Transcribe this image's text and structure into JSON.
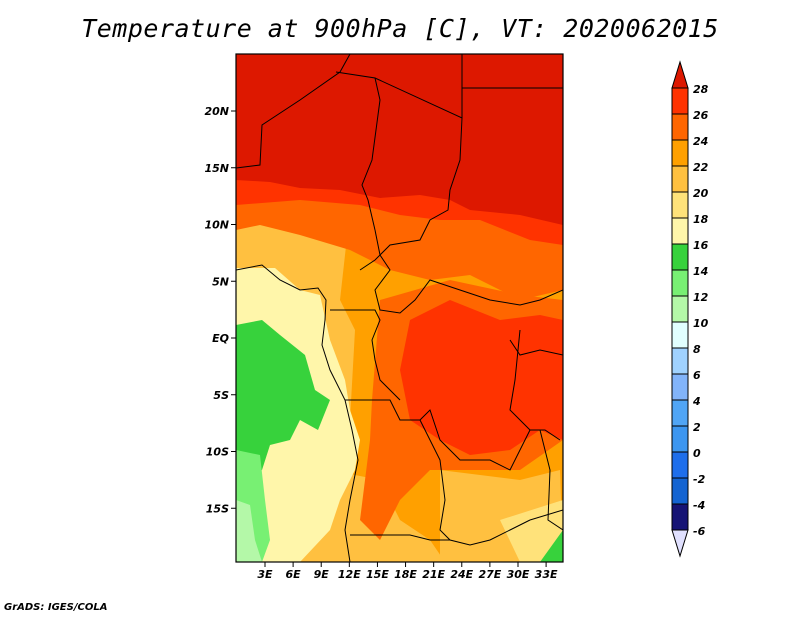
{
  "title": "Temperature at 900hPa [C], VT: 2020062015",
  "footer": "GrADS: IGES/COLA",
  "map": {
    "lat_labels": [
      "20N",
      "15N",
      "10N",
      "5N",
      "EQ",
      "5S",
      "10S",
      "15S"
    ],
    "lat_values": [
      20,
      15,
      10,
      5,
      0,
      -5,
      -10,
      -15
    ],
    "lon_labels": [
      "3E",
      "6E",
      "9E",
      "12E",
      "15E",
      "18E",
      "21E",
      "24E",
      "27E",
      "30E",
      "33E"
    ],
    "lon_values": [
      3,
      6,
      9,
      12,
      15,
      18,
      21,
      24,
      27,
      30,
      33
    ]
  },
  "colorbar": {
    "labels": [
      "28",
      "26",
      "24",
      "22",
      "20",
      "18",
      "16",
      "14",
      "12",
      "10",
      "8",
      "6",
      "4",
      "2",
      "0",
      "-2",
      "-4",
      "-6"
    ],
    "above_color": "#dd1800",
    "below_color": "#e0e0fe",
    "colors": [
      "#ff3300",
      "#ff6600",
      "#ffa000",
      "#ffc040",
      "#ffe27a",
      "#fff6aa",
      "#37d23c",
      "#78f073",
      "#b4f8a8",
      "#e1ffff",
      "#a0d2ff",
      "#82b4fa",
      "#50a5f5",
      "#3c96f0",
      "#1e6eeb",
      "#1464d2",
      "#161475"
    ]
  }
}
